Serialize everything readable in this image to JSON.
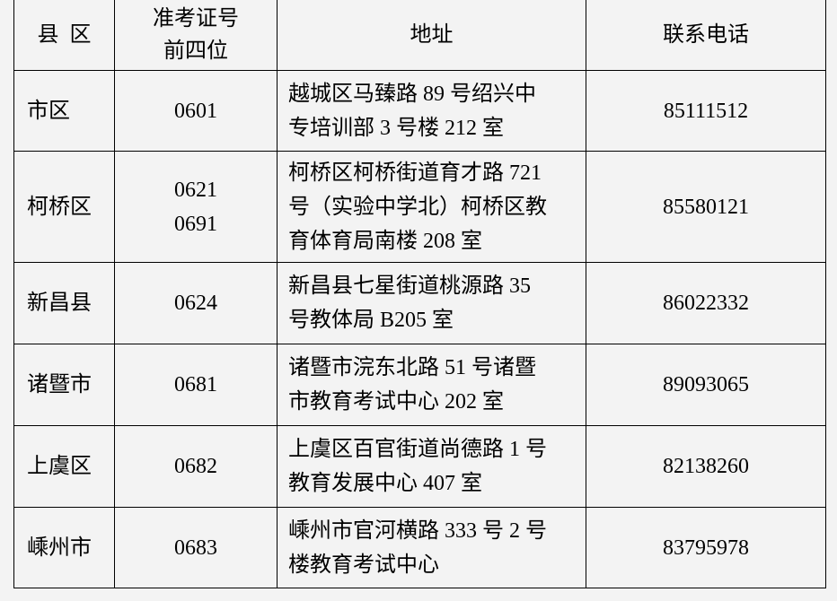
{
  "header": {
    "county": "县  区",
    "prefix_line1": "准考证号",
    "prefix_line2": "前四位",
    "address": "地址",
    "phone": "联系电话"
  },
  "rows": [
    {
      "county": "市区",
      "prefixes": [
        "0601"
      ],
      "address": [
        "越城区马臻路 89 号绍兴中",
        "专培训部 3 号楼 212 室"
      ],
      "phone": "85111512"
    },
    {
      "county": "柯桥区",
      "prefixes": [
        "0621",
        "0691"
      ],
      "address": [
        "柯桥区柯桥街道育才路 721",
        "号（实验中学北）柯桥区教",
        "育体育局南楼 208 室"
      ],
      "phone": "85580121"
    },
    {
      "county": "新昌县",
      "prefixes": [
        "0624"
      ],
      "address": [
        "新昌县七星街道桃源路 35",
        "号教体局 B205 室"
      ],
      "phone": "86022332"
    },
    {
      "county": "诸暨市",
      "prefixes": [
        "0681"
      ],
      "address": [
        "诸暨市浣东北路 51 号诸暨",
        "市教育考试中心 202 室"
      ],
      "phone": "89093065"
    },
    {
      "county": "上虞区",
      "prefixes": [
        "0682"
      ],
      "address": [
        "上虞区百官街道尚德路 1 号",
        "教育发展中心 407 室"
      ],
      "phone": "82138260"
    },
    {
      "county": "嵊州市",
      "prefixes": [
        "0683"
      ],
      "address": [
        "嵊州市官河横路 333 号 2 号",
        "楼教育考试中心"
      ],
      "phone": "83795978"
    }
  ]
}
